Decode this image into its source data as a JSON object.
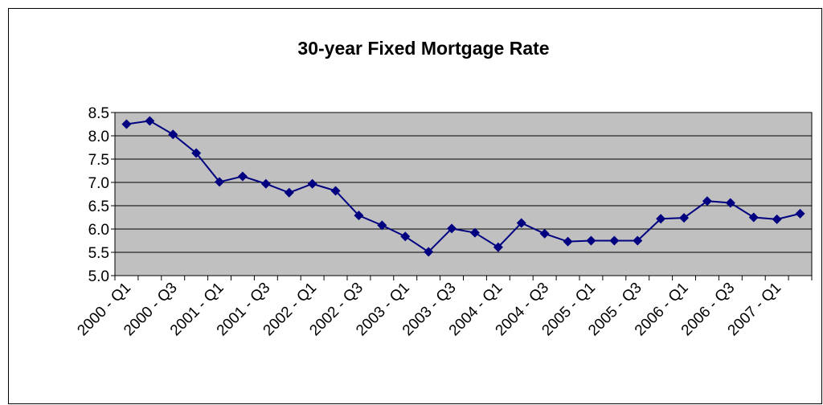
{
  "chart_data": {
    "type": "line",
    "title": "30-year Fixed Mortgage Rate",
    "categories": [
      "2000 - Q1",
      null,
      "2000 - Q3",
      null,
      "2001 - Q1",
      null,
      "2001 - Q3",
      null,
      "2002 - Q1",
      null,
      "2002 - Q3",
      null,
      "2003 - Q1",
      null,
      "2003 - Q3",
      null,
      "2004 - Q1",
      null,
      "2004 - Q3",
      null,
      "2005 - Q1",
      null,
      "2005 - Q3",
      null,
      "2006 - Q1",
      null,
      "2006 - Q3",
      null,
      "2007 - Q1",
      null
    ],
    "series": [
      {
        "color": "#000080",
        "values": [
          8.25,
          8.32,
          8.03,
          7.63,
          7.01,
          7.13,
          6.97,
          6.78,
          6.97,
          6.82,
          6.29,
          6.08,
          5.84,
          5.51,
          6.01,
          5.92,
          5.61,
          6.13,
          5.9,
          5.73,
          5.75,
          5.75,
          5.75,
          6.22,
          6.24,
          6.6,
          6.56,
          6.25,
          6.21,
          6.33
        ]
      }
    ],
    "ylim": [
      5,
      8.5
    ],
    "yticks": [
      {
        "value": 5,
        "label": "5.0"
      },
      5.5,
      {
        "value": 6,
        "label": "6.0"
      },
      6.5,
      {
        "value": 7,
        "label": "7.0"
      },
      7.5,
      {
        "value": 8,
        "label": "8.0"
      },
      8.5
    ],
    "grid": true,
    "plot_background": "#c0c0c0"
  }
}
